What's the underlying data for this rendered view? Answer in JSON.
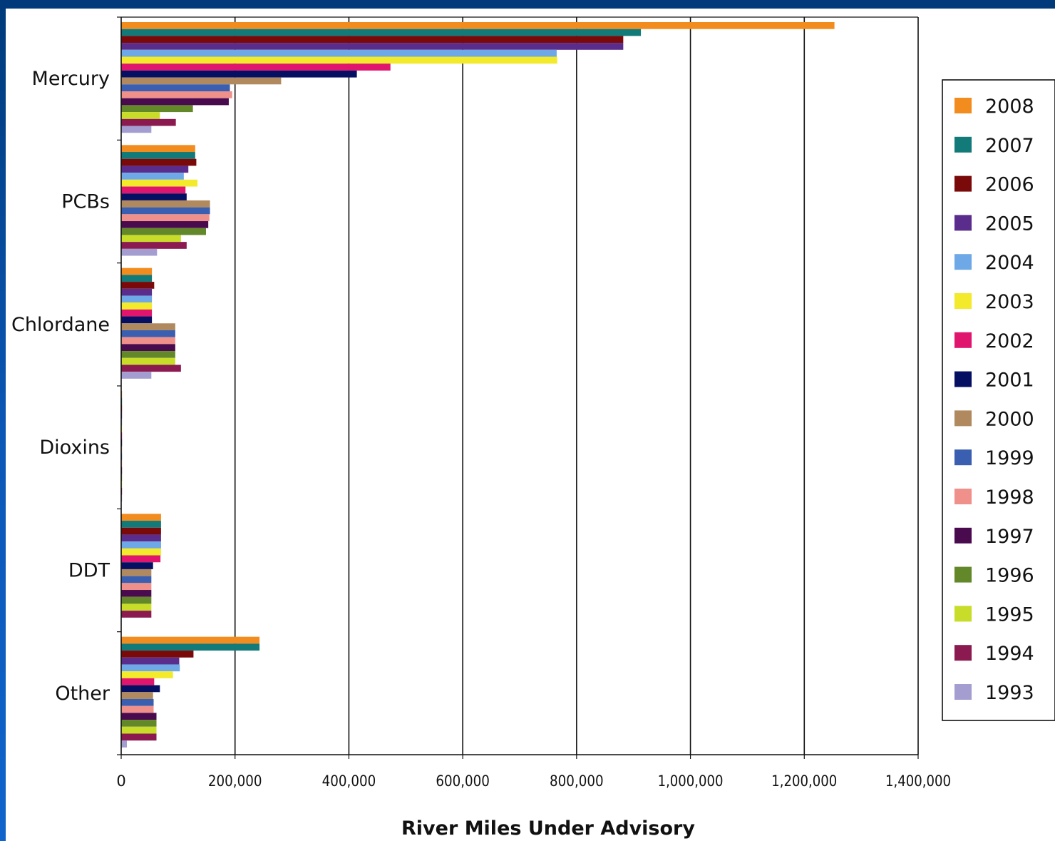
{
  "chart_data": {
    "type": "bar",
    "orientation": "horizontal",
    "xlabel": "River Miles Under Advisory",
    "xlim": [
      0,
      1400000
    ],
    "x_ticks": [
      "0",
      "200,000",
      "400,000",
      "600,000",
      "800,000",
      "1,000,000",
      "1,200,000",
      "1,400,000"
    ],
    "grid": "vertical",
    "legend_position": "right",
    "categories": [
      "Mercury",
      "PCBs",
      "Chlordane",
      "Dioxins",
      "DDT",
      "Other"
    ],
    "series": [
      {
        "name": "2008",
        "color": "#f28c1e",
        "values": [
          1253000,
          130000,
          54000,
          1500,
          70000,
          243000
        ]
      },
      {
        "name": "2007",
        "color": "#127a78",
        "values": [
          913000,
          130000,
          54000,
          1500,
          70000,
          243000
        ]
      },
      {
        "name": "2006",
        "color": "#7a0a0a",
        "values": [
          882000,
          132000,
          58000,
          1500,
          70000,
          127000
        ]
      },
      {
        "name": "2005",
        "color": "#5a2d8c",
        "values": [
          882000,
          118000,
          54000,
          1500,
          70000,
          102000
        ]
      },
      {
        "name": "2004",
        "color": "#6ea8e6",
        "values": [
          765000,
          110000,
          54000,
          1500,
          70000,
          103000
        ]
      },
      {
        "name": "2003",
        "color": "#f2ea2a",
        "values": [
          766000,
          134000,
          54000,
          1500,
          70000,
          91000
        ]
      },
      {
        "name": "2002",
        "color": "#e0166e",
        "values": [
          473000,
          113000,
          54000,
          1500,
          69000,
          58000
        ]
      },
      {
        "name": "2001",
        "color": "#061063",
        "values": [
          414000,
          115000,
          54000,
          1500,
          56000,
          68000
        ]
      },
      {
        "name": "2000",
        "color": "#b08a5e",
        "values": [
          281000,
          156000,
          95000,
          1500,
          53000,
          56000
        ]
      },
      {
        "name": "1999",
        "color": "#3a5eb0",
        "values": [
          191000,
          156000,
          95000,
          1500,
          53000,
          57000
        ]
      },
      {
        "name": "1998",
        "color": "#f0908a",
        "values": [
          195000,
          155000,
          95000,
          1500,
          53000,
          57000
        ]
      },
      {
        "name": "1997",
        "color": "#4a0a4e",
        "values": [
          189000,
          153000,
          95000,
          1500,
          53000,
          62000
        ]
      },
      {
        "name": "1996",
        "color": "#62882a",
        "values": [
          126000,
          149000,
          95000,
          1500,
          53000,
          62000
        ]
      },
      {
        "name": "1995",
        "color": "#c8dc2a",
        "values": [
          68000,
          105000,
          95000,
          1500,
          53000,
          62000
        ]
      },
      {
        "name": "1994",
        "color": "#8a1a50",
        "values": [
          96000,
          115000,
          105000,
          1500,
          53000,
          62000
        ]
      },
      {
        "name": "1993",
        "color": "#a49ed0",
        "values": [
          53000,
          63000,
          53000,
          1500,
          0,
          10000
        ]
      }
    ]
  }
}
